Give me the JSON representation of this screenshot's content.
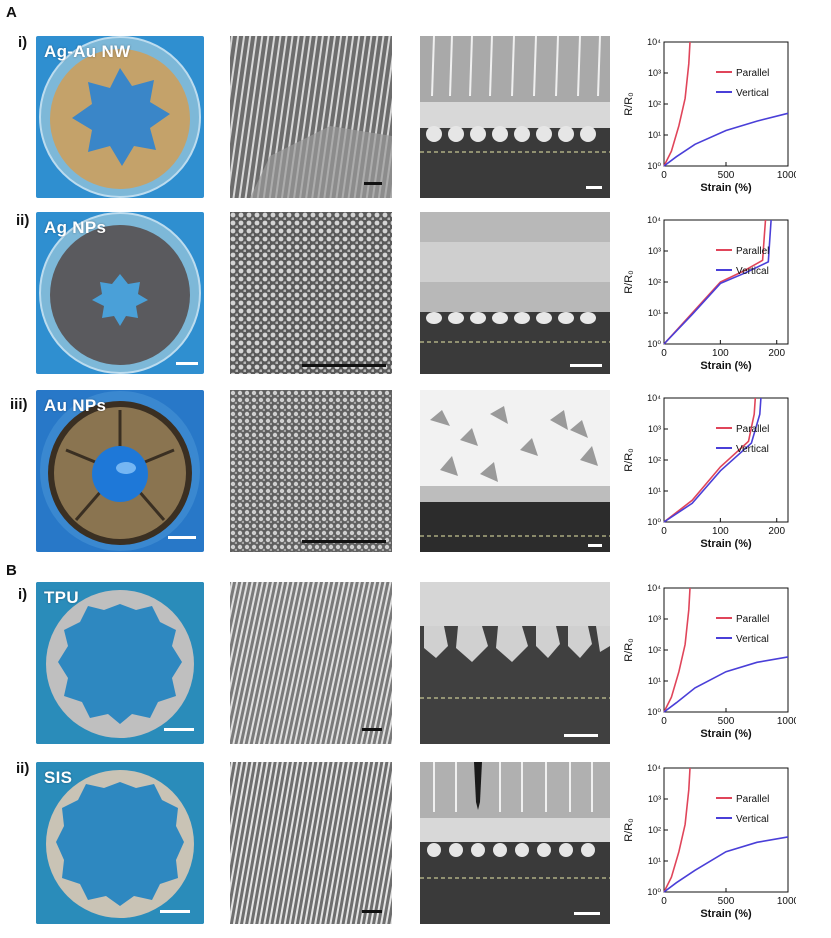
{
  "sections": [
    {
      "letter": "A",
      "rows": [
        {
          "roman": "i)",
          "label": "Ag-Au NW"
        },
        {
          "roman": "ii)",
          "label": "Ag NPs"
        },
        {
          "roman": "iii)",
          "label": "Au NPs"
        }
      ]
    },
    {
      "letter": "B",
      "rows": [
        {
          "roman": "i)",
          "label": "TPU"
        },
        {
          "roman": "ii)",
          "label": "SIS"
        }
      ]
    }
  ],
  "colors": {
    "parallel": "#e0455a",
    "vertical": "#4a3fd8"
  },
  "chart_data": [
    {
      "type": "line",
      "xlabel": "Strain (%)",
      "ylabel": "R/R0",
      "yscale": "log",
      "ylim": [
        1,
        10000
      ],
      "yticks": [
        "10^0",
        "10^1",
        "10^2",
        "10^3",
        "10^4"
      ],
      "xlim": [
        0,
        1000
      ],
      "xticks": [
        "0",
        "500",
        "1000"
      ],
      "legend": [
        "Parallel",
        "Vertical"
      ],
      "legend_position": "top-right",
      "series": [
        {
          "name": "Parallel",
          "x": [
            0,
            60,
            120,
            170,
            200,
            210
          ],
          "y": [
            1,
            3,
            20,
            150,
            2000,
            10000
          ]
        },
        {
          "name": "Vertical",
          "x": [
            0,
            100,
            250,
            500,
            750,
            1000
          ],
          "y": [
            1,
            2,
            5,
            14,
            28,
            50
          ]
        }
      ]
    },
    {
      "type": "line",
      "xlabel": "Strain (%)",
      "ylabel": "R/R0",
      "yscale": "log",
      "ylim": [
        1,
        10000
      ],
      "yticks": [
        "10^0",
        "10^1",
        "10^2",
        "10^3",
        "10^4"
      ],
      "xlim": [
        0,
        220
      ],
      "xticks": [
        "0",
        "100",
        "200"
      ],
      "legend": [
        "Parallel",
        "Vertical"
      ],
      "legend_position": "top-right",
      "series": [
        {
          "name": "Parallel",
          "x": [
            0,
            50,
            100,
            140,
            175,
            178,
            180
          ],
          "y": [
            1,
            10,
            100,
            220,
            500,
            3000,
            10000
          ]
        },
        {
          "name": "Vertical",
          "x": [
            0,
            50,
            100,
            145,
            185,
            188,
            190
          ],
          "y": [
            1,
            9,
            90,
            200,
            450,
            3000,
            10000
          ]
        }
      ]
    },
    {
      "type": "line",
      "xlabel": "Strain (%)",
      "ylabel": "R/R0",
      "yscale": "log",
      "ylim": [
        1,
        10000
      ],
      "yticks": [
        "10^0",
        "10^1",
        "10^2",
        "10^3",
        "10^4"
      ],
      "xlim": [
        0,
        220
      ],
      "xticks": [
        "0",
        "100",
        "200"
      ],
      "legend": [
        "Parallel",
        "Vertical"
      ],
      "legend_position": "top-right",
      "series": [
        {
          "name": "Parallel",
          "x": [
            0,
            50,
            100,
            150,
            160,
            162
          ],
          "y": [
            1,
            5,
            60,
            400,
            3000,
            10000
          ]
        },
        {
          "name": "Vertical",
          "x": [
            0,
            50,
            100,
            155,
            170,
            172
          ],
          "y": [
            1,
            4,
            45,
            350,
            3000,
            10000
          ]
        }
      ]
    },
    {
      "type": "line",
      "xlabel": "Strain (%)",
      "ylabel": "R/R0",
      "yscale": "log",
      "ylim": [
        1,
        10000
      ],
      "yticks": [
        "10^0",
        "10^1",
        "10^2",
        "10^3",
        "10^4"
      ],
      "xlim": [
        0,
        1000
      ],
      "xticks": [
        "0",
        "500",
        "1000"
      ],
      "legend": [
        "Parallel",
        "Vertical"
      ],
      "legend_position": "top-right",
      "series": [
        {
          "name": "Parallel",
          "x": [
            0,
            60,
            120,
            170,
            200,
            210
          ],
          "y": [
            1,
            3,
            20,
            150,
            2000,
            10000
          ]
        },
        {
          "name": "Vertical",
          "x": [
            0,
            100,
            250,
            500,
            750,
            1000
          ],
          "y": [
            1,
            2,
            6,
            20,
            40,
            60
          ]
        }
      ]
    },
    {
      "type": "line",
      "xlabel": "Strain (%)",
      "ylabel": "R/R0",
      "yscale": "log",
      "ylim": [
        1,
        10000
      ],
      "yticks": [
        "10^0",
        "10^1",
        "10^2",
        "10^3",
        "10^4"
      ],
      "xlim": [
        0,
        1000
      ],
      "xticks": [
        "0",
        "500",
        "1000"
      ],
      "legend": [
        "Parallel",
        "Vertical"
      ],
      "legend_position": "top-right",
      "series": [
        {
          "name": "Parallel",
          "x": [
            0,
            60,
            120,
            170,
            200,
            210
          ],
          "y": [
            1,
            3,
            20,
            150,
            2000,
            10000
          ]
        },
        {
          "name": "Vertical",
          "x": [
            0,
            100,
            250,
            500,
            750,
            1000
          ],
          "y": [
            1,
            2,
            5,
            20,
            40,
            60
          ]
        }
      ]
    }
  ]
}
